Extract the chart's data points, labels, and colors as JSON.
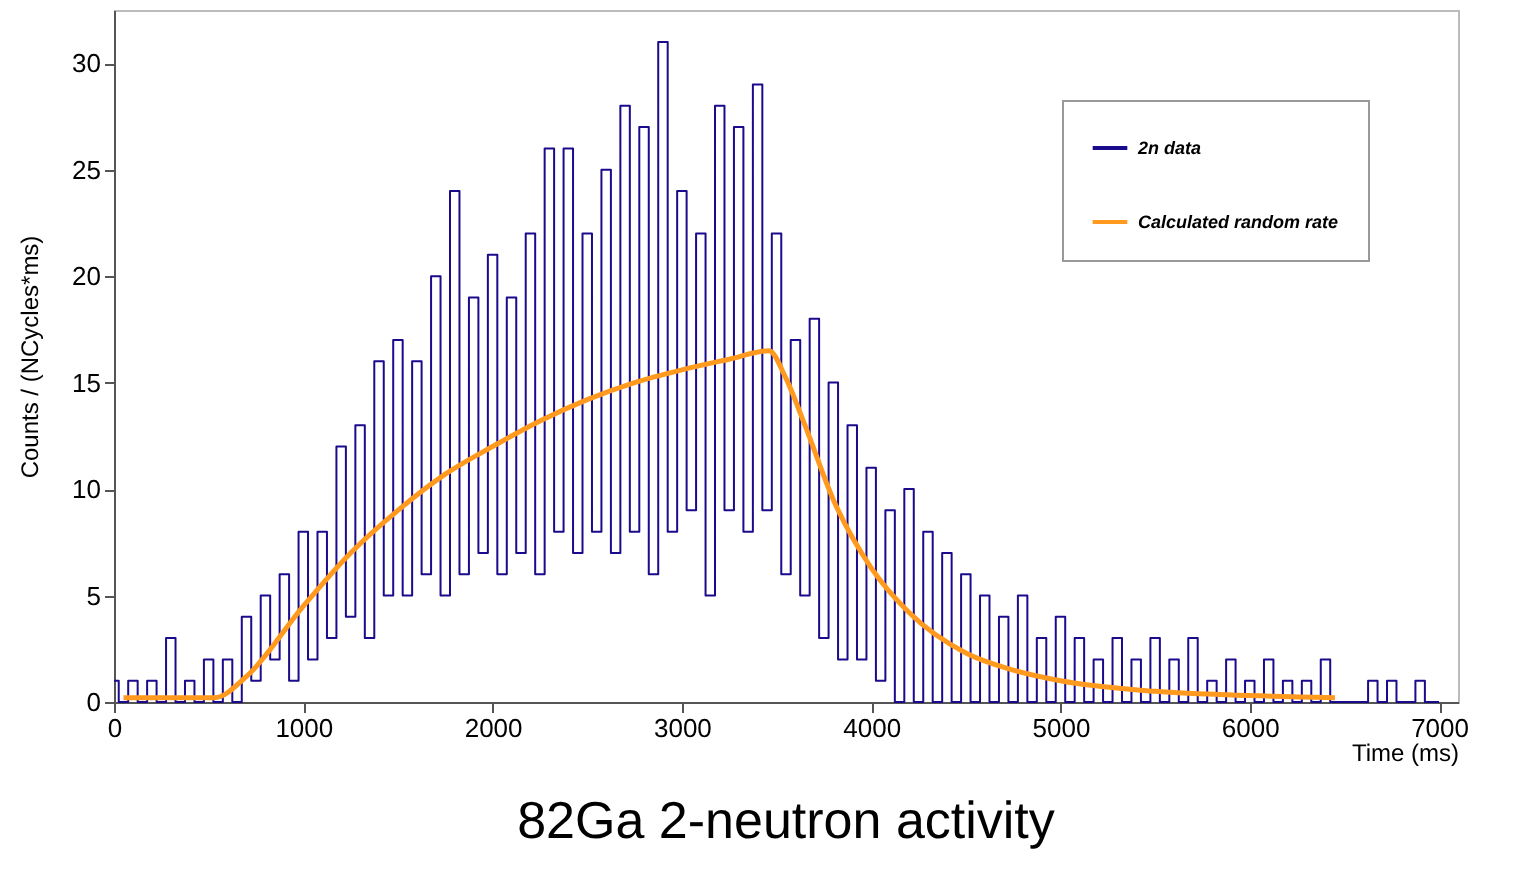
{
  "chart_data": {
    "type": "line",
    "title": "82Ga 2-neutron activity",
    "xlabel": "Time (ms)",
    "ylabel": "Counts / (NCycles*ms)",
    "xlim": [
      0,
      7100
    ],
    "ylim": [
      0,
      32.5
    ],
    "xticks": [
      0,
      1000,
      2000,
      3000,
      4000,
      5000,
      6000,
      7000
    ],
    "yticks": [
      0,
      5,
      10,
      15,
      20,
      25,
      30
    ],
    "grid": false,
    "legend": "top right",
    "marker": "none",
    "line_style": "solid",
    "series": [
      {
        "name": "2n data",
        "type": "step",
        "color": "#1a0a8c",
        "x": [
          0,
          50,
          100,
          150,
          200,
          250,
          300,
          350,
          400,
          450,
          500,
          550,
          600,
          650,
          700,
          750,
          800,
          850,
          900,
          950,
          1000,
          1050,
          1100,
          1150,
          1200,
          1250,
          1300,
          1350,
          1400,
          1450,
          1500,
          1550,
          1600,
          1650,
          1700,
          1750,
          1800,
          1850,
          1900,
          1950,
          2000,
          2050,
          2100,
          2150,
          2200,
          2250,
          2300,
          2350,
          2400,
          2450,
          2500,
          2550,
          2600,
          2650,
          2700,
          2750,
          2800,
          2850,
          2900,
          2950,
          3000,
          3050,
          3100,
          3150,
          3200,
          3250,
          3300,
          3350,
          3400,
          3450,
          3500,
          3550,
          3600,
          3650,
          3700,
          3750,
          3800,
          3850,
          3900,
          3950,
          4000,
          4050,
          4100,
          4150,
          4200,
          4250,
          4300,
          4350,
          4400,
          4450,
          4500,
          4550,
          4600,
          4650,
          4700,
          4750,
          4800,
          4850,
          4900,
          4950,
          5000,
          5050,
          5100,
          5150,
          5200,
          5250,
          5300,
          5350,
          5400,
          5450,
          5500,
          5550,
          5600,
          5650,
          5700,
          5750,
          5800,
          5850,
          5900,
          5950,
          6000,
          6050,
          6100,
          6150,
          6200,
          6250,
          6300,
          6350,
          6400,
          6450,
          6500,
          6550,
          6600,
          6650,
          6700,
          6750,
          6800,
          6850,
          6900,
          6950,
          7000
        ],
        "values": [
          1,
          0,
          1,
          0,
          1,
          0,
          3,
          0,
          1,
          0,
          2,
          0,
          2,
          0,
          4,
          1,
          5,
          2,
          6,
          1,
          8,
          2,
          8,
          3,
          12,
          4,
          13,
          3,
          16,
          5,
          17,
          5,
          16,
          6,
          20,
          5,
          24,
          6,
          19,
          7,
          21,
          6,
          19,
          7,
          22,
          6,
          26,
          8,
          26,
          7,
          22,
          8,
          25,
          7,
          28,
          8,
          27,
          6,
          31,
          8,
          24,
          9,
          22,
          5,
          28,
          9,
          27,
          8,
          29,
          9,
          22,
          6,
          17,
          5,
          18,
          3,
          15,
          2,
          13,
          2,
          11,
          1,
          9,
          0,
          10,
          0,
          8,
          0,
          7,
          0,
          6,
          0,
          5,
          0,
          4,
          0,
          5,
          0,
          3,
          0,
          4,
          0,
          3,
          0,
          2,
          0,
          3,
          0,
          2,
          0,
          3,
          0,
          2,
          0,
          3,
          0,
          1,
          0,
          2,
          0,
          1,
          0,
          2,
          0,
          1,
          0,
          1,
          0,
          2,
          0,
          0,
          0,
          0,
          1,
          0,
          1,
          0,
          0,
          1,
          0,
          0
        ]
      },
      {
        "name": "Calculated random rate",
        "color": "#ff9a1f",
        "x": [
          50,
          530,
          700,
          1000,
          1250,
          1500,
          1750,
          2000,
          2250,
          2500,
          2750,
          3000,
          3250,
          3460,
          3550,
          3650,
          3800,
          4000,
          4200,
          4500,
          4750,
          5000,
          5500,
          6000,
          6450
        ],
        "values": [
          0.2,
          0.2,
          1.2,
          4.5,
          7,
          9,
          10.7,
          12,
          13.2,
          14.2,
          15,
          15.6,
          16.1,
          16.5,
          15.2,
          13,
          9.5,
          6.3,
          4.2,
          2.3,
          1.5,
          1,
          0.5,
          0.3,
          0.2
        ]
      }
    ]
  }
}
